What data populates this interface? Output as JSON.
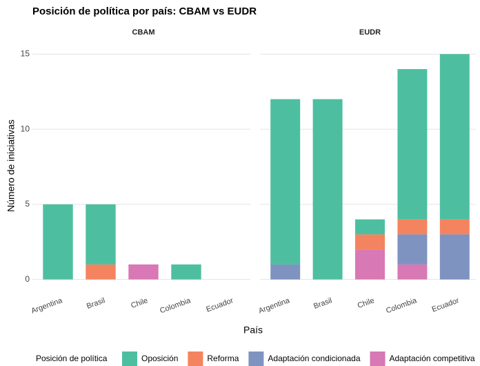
{
  "title": "Posición de política por país: CBAM vs EUDR",
  "x_label": "País",
  "y_label": "Número de iniciativas",
  "legend_title": "Posición de política",
  "chart_data": [
    {
      "type": "bar",
      "stacked": true,
      "title": "CBAM",
      "categories": [
        "Argentina",
        "Brasil",
        "Chile",
        "Colombia",
        "Ecuador"
      ],
      "series": [
        {
          "name": "Oposición",
          "color": "#4dbfa0",
          "values": [
            5,
            4,
            0,
            1,
            0
          ]
        },
        {
          "name": "Reforma",
          "color": "#f4845f",
          "values": [
            0,
            1,
            0,
            0,
            0
          ]
        },
        {
          "name": "Adaptación condicionada",
          "color": "#7f93c0",
          "values": [
            0,
            0,
            0,
            0,
            0
          ]
        },
        {
          "name": "Adaptación competitiva",
          "color": "#d878b4",
          "values": [
            0,
            0,
            1,
            0,
            0
          ]
        }
      ],
      "ylim": [
        -0.75,
        15.75
      ],
      "yticks": [
        0,
        5,
        10,
        15
      ],
      "grid": true
    },
    {
      "type": "bar",
      "stacked": true,
      "title": "EUDR",
      "categories": [
        "Argentina",
        "Brasil",
        "Chile",
        "Colombia",
        "Ecuador"
      ],
      "series": [
        {
          "name": "Oposición",
          "color": "#4dbfa0",
          "values": [
            11,
            12,
            1,
            10,
            11
          ]
        },
        {
          "name": "Reforma",
          "color": "#f4845f",
          "values": [
            0,
            0,
            1,
            1,
            1
          ]
        },
        {
          "name": "Adaptación condicionada",
          "color": "#7f93c0",
          "values": [
            1,
            0,
            0,
            2,
            3
          ]
        },
        {
          "name": "Adaptación competitiva",
          "color": "#d878b4",
          "values": [
            0,
            0,
            2,
            1,
            0
          ]
        }
      ],
      "ylim": [
        -0.75,
        15.75
      ],
      "yticks": [
        0,
        5,
        10,
        15
      ],
      "grid": true
    }
  ]
}
